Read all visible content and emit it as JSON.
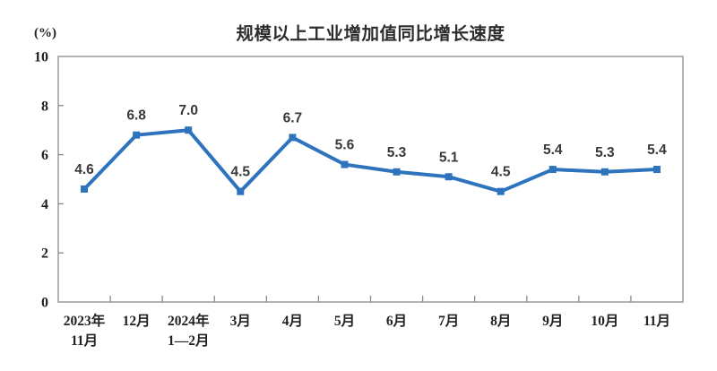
{
  "chart_data": {
    "type": "line",
    "title": "规模以上工业增加值同比增长速度",
    "unit_label": "(%)",
    "categories": [
      [
        "2023年",
        "11月"
      ],
      [
        "12月"
      ],
      [
        "2024年",
        "1—2月"
      ],
      [
        "3月"
      ],
      [
        "4月"
      ],
      [
        "5月"
      ],
      [
        "6月"
      ],
      [
        "7月"
      ],
      [
        "8月"
      ],
      [
        "9月"
      ],
      [
        "10月"
      ],
      [
        "11月"
      ]
    ],
    "values": [
      4.6,
      6.8,
      7.0,
      4.5,
      6.7,
      5.6,
      5.3,
      5.1,
      4.5,
      5.4,
      5.3,
      5.4
    ],
    "ylim": [
      0,
      10
    ],
    "ytick_interval": 2,
    "yticks": [
      0,
      2,
      4,
      6,
      8,
      10
    ],
    "grid": false,
    "legend": "none",
    "marker": "square",
    "line_color": "#2E73BE",
    "axis_color": "#8a8a8a",
    "label_color": "#383838",
    "background_color": "#ffffff"
  }
}
